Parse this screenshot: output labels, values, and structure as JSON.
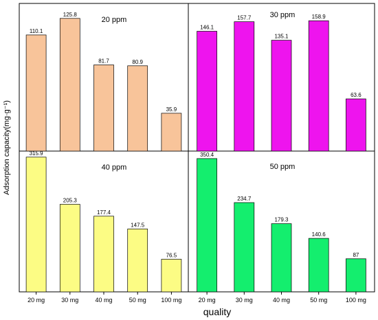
{
  "chart_data": [
    {
      "type": "bar",
      "title": "20 ppm",
      "categories": [
        "20 mg",
        "30 mg",
        "40 mg",
        "50 mg",
        "100 mg"
      ],
      "values": [
        110.1,
        125.8,
        81.7,
        80.9,
        35.9
      ],
      "value_labels": [
        "110.1",
        "125.8",
        "81.7",
        "80.9",
        "35.9"
      ],
      "ylim": [
        0,
        140
      ],
      "color": "#f8c49a"
    },
    {
      "type": "bar",
      "title": "30 ppm",
      "categories": [
        "20 mg",
        "30 mg",
        "40 mg",
        "50 mg",
        "100 mg"
      ],
      "values": [
        146.1,
        157.7,
        135.1,
        158.9,
        63.6
      ],
      "value_labels": [
        "146.1",
        "157.7",
        "135.1",
        "158.9",
        "63.6"
      ],
      "ylim": [
        0,
        180
      ],
      "color": "#ee14ee"
    },
    {
      "type": "bar",
      "title": "40 ppm",
      "categories": [
        "20 mg",
        "30 mg",
        "40 mg",
        "50 mg",
        "100 mg"
      ],
      "values": [
        315.9,
        205.3,
        177.4,
        147.5,
        76.5
      ],
      "value_labels": [
        "315.9",
        "205.3",
        "177.4",
        "147.5",
        "76.5"
      ],
      "ylim": [
        0,
        330
      ],
      "color": "#fcfc84"
    },
    {
      "type": "bar",
      "title": "50 ppm",
      "categories": [
        "20 mg",
        "30 mg",
        "40 mg",
        "50 mg",
        "100 mg"
      ],
      "values": [
        350.4,
        234.7,
        179.3,
        140.6,
        87
      ],
      "value_labels": [
        "350.4",
        "234.7",
        "179.3",
        "140.6",
        "87"
      ],
      "ylim": [
        0,
        370
      ],
      "color": "#14ee6e"
    }
  ],
  "xlabel": "quality",
  "ylabel": "Adsorption capacity(mg·g⁻¹)",
  "x_tick_labels": [
    "20 mg",
    "30 mg",
    "40 mg",
    "50 mg",
    "100 mg"
  ]
}
